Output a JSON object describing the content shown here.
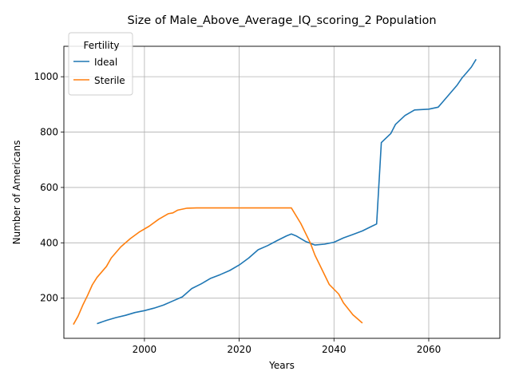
{
  "chart_data": {
    "type": "line",
    "title": "Size of Male_Above_Average_IQ_scoring_2 Population",
    "xlabel": "Years",
    "ylabel": "Number of Americans",
    "xlim": [
      1983,
      2075
    ],
    "ylim": [
      55,
      1110
    ],
    "xticks": [
      2000,
      2020,
      2040,
      2060
    ],
    "yticks": [
      200,
      400,
      600,
      800,
      1000
    ],
    "grid": true,
    "legend": {
      "title": "Fertility",
      "position": "top-left"
    },
    "series": [
      {
        "name": "Ideal",
        "color": "#1f77b4",
        "x": [
          1990,
          1992,
          1994,
          1996,
          1998,
          2000,
          2002,
          2004,
          2006,
          2008,
          2010,
          2012,
          2014,
          2016,
          2018,
          2020,
          2022,
          2024,
          2026,
          2028,
          2030,
          2031,
          2032,
          2034,
          2036,
          2038,
          2040,
          2042,
          2044,
          2046,
          2048,
          2049,
          2050,
          2052,
          2053,
          2055,
          2057,
          2060,
          2062,
          2063,
          2065,
          2066,
          2067,
          2068,
          2069,
          2070
        ],
        "y": [
          108,
          120,
          130,
          138,
          148,
          155,
          164,
          175,
          190,
          205,
          235,
          252,
          272,
          285,
          300,
          320,
          345,
          375,
          390,
          408,
          425,
          432,
          425,
          405,
          392,
          395,
          402,
          418,
          430,
          443,
          460,
          468,
          762,
          795,
          828,
          860,
          880,
          883,
          890,
          910,
          950,
          970,
          995,
          1015,
          1035,
          1063
        ]
      },
      {
        "name": "Sterile",
        "color": "#ff7f0e",
        "x": [
          1985,
          1986,
          1987,
          1988,
          1989,
          1990,
          1991,
          1992,
          1993,
          1995,
          1997,
          1999,
          2001,
          2003,
          2005,
          2006,
          2007,
          2009,
          2011,
          2013,
          2015,
          2020,
          2025,
          2030,
          2031,
          2033,
          2035,
          2036,
          2037,
          2039,
          2041,
          2042,
          2044,
          2046
        ],
        "y": [
          105,
          135,
          175,
          210,
          248,
          275,
          295,
          315,
          345,
          385,
          415,
          440,
          460,
          485,
          505,
          508,
          518,
          525,
          526,
          526,
          526,
          526,
          526,
          526,
          526,
          470,
          400,
          355,
          320,
          250,
          215,
          183,
          140,
          110
        ]
      }
    ]
  }
}
